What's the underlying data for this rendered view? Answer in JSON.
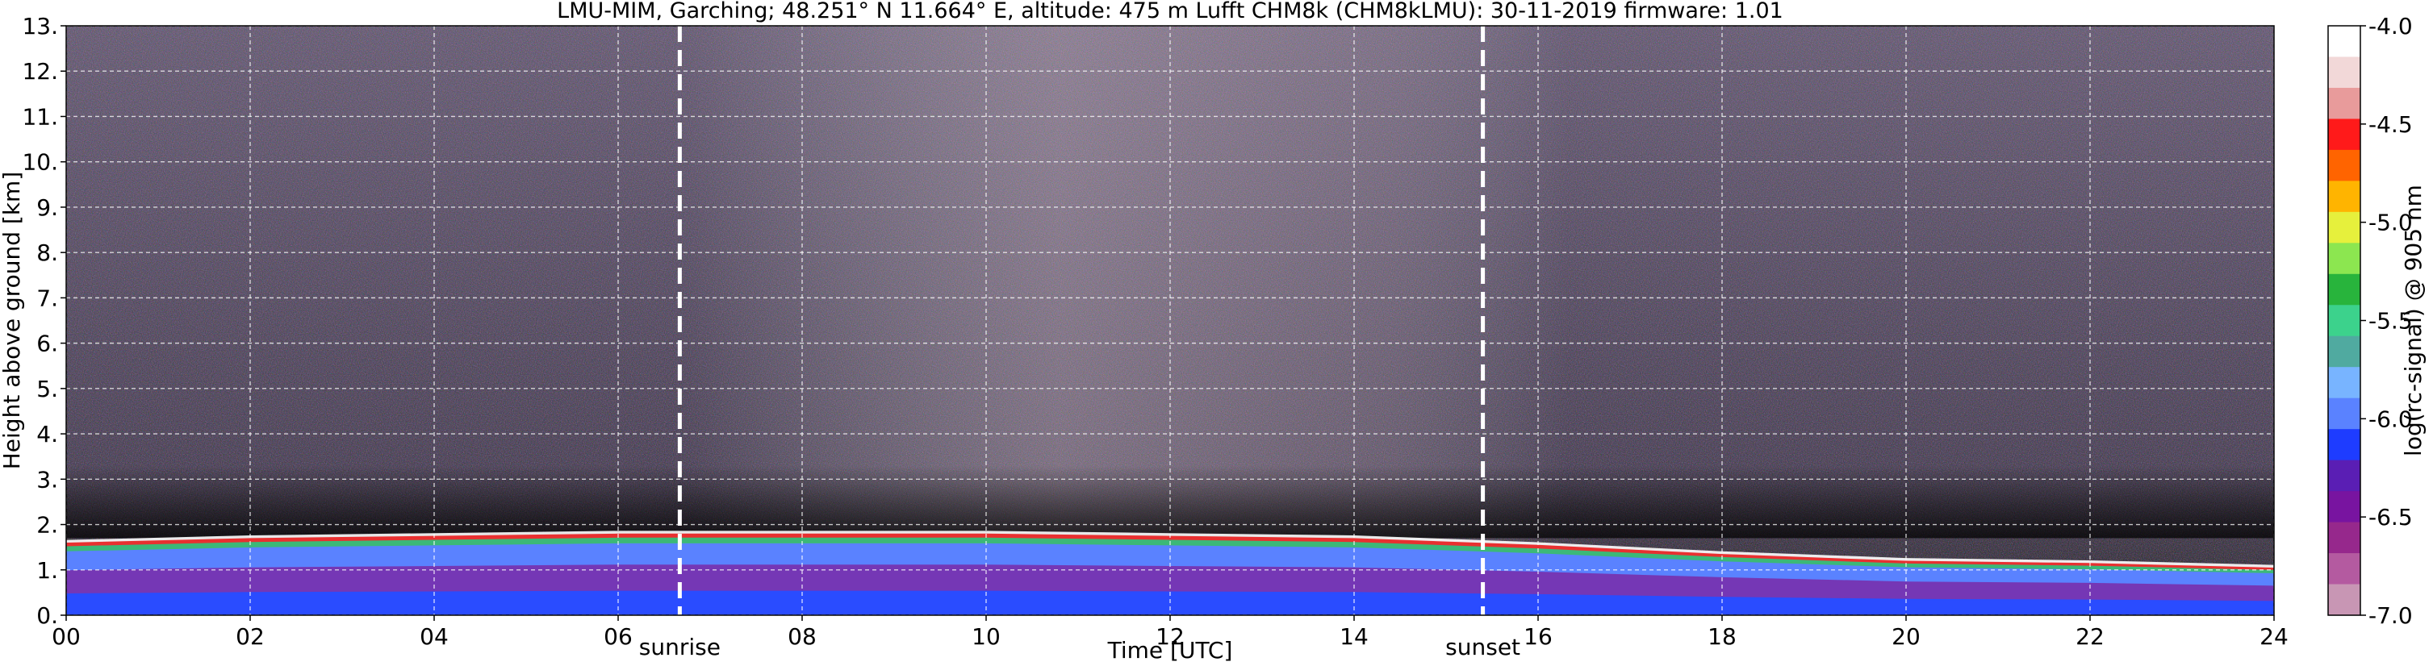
{
  "chart_data": {
    "type": "heatmap",
    "title": "LMU-MIM, Garching; 48.251° N 11.664° E, altitude: 475 m    Lufft CHM8k (CHM8kLMU): 30-11-2019    firmware: 1.01",
    "xlabel": "Time [UTC]",
    "ylabel": "Height above ground [km]",
    "xlim": [
      0,
      24
    ],
    "ylim": [
      0,
      13
    ],
    "x_ticks": [
      "00",
      "02",
      "04",
      "06",
      "08",
      "10",
      "12",
      "14",
      "16",
      "18",
      "20",
      "22",
      "24"
    ],
    "y_ticks": [
      "0.",
      "1.",
      "2.",
      "3.",
      "4.",
      "5.",
      "6.",
      "7.",
      "8.",
      "9.",
      "10.",
      "11.",
      "12.",
      "13."
    ],
    "grid": true,
    "events": [
      {
        "label": "sunrise",
        "time": 6.67
      },
      {
        "label": "sunset",
        "time": 15.4
      }
    ],
    "colorbar": {
      "label": "log(rc-signal) @ 905 nm",
      "range": [
        -7.0,
        -4.0
      ],
      "ticks": [
        "-4.0",
        "-4.5",
        "-5.0",
        "-5.5",
        "-6.0",
        "-6.5",
        "-7.0"
      ],
      "colors": [
        "#ffffff",
        "#f2d8d8",
        "#e89b9b",
        "#ff1a1a",
        "#ff6400",
        "#ffb400",
        "#e6f03c",
        "#8ce650",
        "#28b43c",
        "#3cd28c",
        "#50aaa0",
        "#78b4ff",
        "#5a82ff",
        "#1e3cff",
        "#5a1eb4",
        "#7814a0",
        "#96288c",
        "#b45aa0",
        "#c896b4"
      ]
    },
    "boundary_layer_top_km": [
      {
        "t": 0,
        "h": 1.6
      },
      {
        "t": 2,
        "h": 1.7
      },
      {
        "t": 4,
        "h": 1.75
      },
      {
        "t": 6,
        "h": 1.8
      },
      {
        "t": 8,
        "h": 1.8
      },
      {
        "t": 10,
        "h": 1.8
      },
      {
        "t": 12,
        "h": 1.75
      },
      {
        "t": 14,
        "h": 1.7
      },
      {
        "t": 16,
        "h": 1.55
      },
      {
        "t": 18,
        "h": 1.35
      },
      {
        "t": 20,
        "h": 1.2
      },
      {
        "t": 22,
        "h": 1.15
      },
      {
        "t": 24,
        "h": 1.05
      }
    ]
  }
}
